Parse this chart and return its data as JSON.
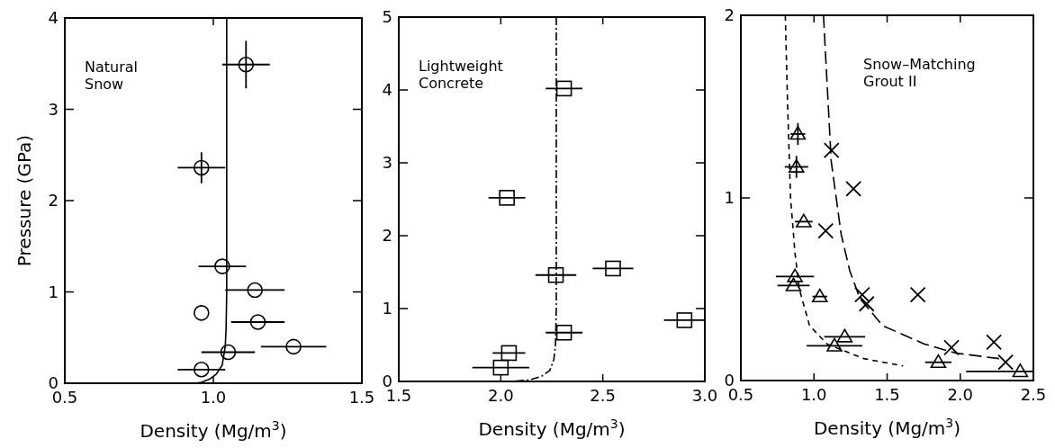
{
  "chart_data": [
    {
      "type": "scatter",
      "xlabel": "Density (Mg/m$^{3}$)",
      "ylabel": "Pressure (GPa)",
      "xlim": [
        0.5,
        1.5
      ],
      "xticks": [
        0.5,
        {
          "value": 1,
          "label": "1.0"
        },
        1.5
      ],
      "ylim": [
        0,
        4
      ],
      "yticks": [
        0,
        1,
        2,
        3,
        4
      ],
      "annotations": [
        "Natural\nSnow"
      ],
      "series": [
        {
          "marker": "circle",
          "color": "#000000",
          "x": [
            1.11,
            0.96,
            1.03,
            1.14,
            0.96,
            1.15,
            1.27,
            1.05,
            0.96
          ],
          "values": [
            3.49,
            2.36,
            1.28,
            1.02,
            0.77,
            0.67,
            0.4,
            0.34,
            0.15
          ],
          "xerrors": [
            0.08,
            0.08,
            0.08,
            0.1,
            null,
            0.09,
            0.11,
            0.09,
            0.08
          ],
          "errors": [
            0.26,
            0.17,
            null,
            null,
            null,
            null,
            null,
            null,
            null
          ]
        },
        {
          "type": "line",
          "line_style": "solid",
          "color": "#000000",
          "x": [
            1.045,
            1.045,
            1.043,
            1.04,
            1.03,
            1.01,
            0.99,
            0.96,
            0.94
          ],
          "values": [
            4,
            1,
            0.6,
            0.4,
            0.2,
            0.1,
            0.05,
            0.01,
            0
          ]
        }
      ]
    },
    {
      "type": "scatter",
      "xlabel": "Density (Mg/m$^{3}$)",
      "xlim": [
        1.5,
        3.0
      ],
      "xticks": [
        1.5,
        {
          "value": 2,
          "label": "2.0"
        },
        2.5,
        {
          "value": 3,
          "label": "3.0"
        }
      ],
      "ylim": [
        0,
        5
      ],
      "yticks": [
        0,
        1,
        2,
        3,
        4,
        5
      ],
      "annotations": [
        "Lightweight\nConcrete"
      ],
      "series": [
        {
          "marker": "square",
          "color": "#000000",
          "x": [
            2.31,
            2.03,
            2.27,
            2.55,
            2.9,
            2.31,
            2.04,
            2.0
          ],
          "values": [
            4.02,
            2.52,
            1.46,
            1.55,
            0.84,
            0.67,
            0.39,
            0.19
          ],
          "xerrors": [
            0.09,
            0.09,
            0.1,
            0.1,
            0.1,
            0.09,
            0.08,
            0.14
          ]
        },
        {
          "type": "line",
          "line_style": "dashdot",
          "color": "#000000",
          "x": [
            2.272,
            2.272,
            2.268,
            2.26,
            2.24,
            2.2,
            2.14,
            2.05
          ],
          "values": [
            5,
            1,
            0.5,
            0.3,
            0.15,
            0.07,
            0.02,
            0
          ]
        }
      ]
    },
    {
      "type": "scatter",
      "xlabel": "Density (Mg/m$^{3}$)",
      "xlim": [
        0.5,
        2.5
      ],
      "xticks": [
        0.5,
        {
          "value": 1,
          "label": "1.0"
        },
        1.5,
        {
          "value": 2,
          "label": "2.0"
        },
        2.5
      ],
      "ylim": [
        0,
        2
      ],
      "yticks": [
        0,
        1,
        2
      ],
      "annotations": [
        "Snow–Matching\nGrout II"
      ],
      "series": [
        {
          "marker": "triangle",
          "color": "#000000",
          "x": [
            0.89,
            0.88,
            0.93,
            0.87,
            0.86,
            1.04,
            1.21,
            1.14,
            1.85,
            2.41
          ],
          "values": [
            1.35,
            1.17,
            0.87,
            0.57,
            0.52,
            0.46,
            0.24,
            0.19,
            0.1,
            0.05
          ],
          "xerrors": [
            0.05,
            0.08,
            0.06,
            0.13,
            0.11,
            0.05,
            0.14,
            0.19,
            0.09,
            [
              2.04,
              2.5
            ]
          ],
          "errors": [
            0.06,
            0.06,
            null,
            null,
            null,
            null,
            null,
            null,
            null,
            null
          ]
        },
        {
          "marker": "cross",
          "color": "#000000",
          "x": [
            1.12,
            1.27,
            1.08,
            1.33,
            1.36,
            1.71,
            1.94,
            2.23,
            2.31
          ],
          "values": [
            1.26,
            1.05,
            0.82,
            0.47,
            0.42,
            0.47,
            0.18,
            0.21,
            0.1
          ]
        },
        {
          "type": "line",
          "line_style": "dashed",
          "color": "#000000",
          "x": [
            0.804,
            0.82,
            0.84,
            0.87,
            0.9,
            0.97,
            1.09,
            1.34,
            1.61
          ],
          "values": [
            2,
            1.5,
            1,
            0.7,
            0.5,
            0.3,
            0.2,
            0.12,
            0.08
          ]
        },
        {
          "type": "line",
          "line_style": "longdash",
          "color": "#000000",
          "x": [
            1.065,
            1.118,
            1.186,
            1.245,
            1.314,
            1.47,
            1.755,
            1.97,
            2.265
          ],
          "values": [
            2,
            1.2,
            0.8,
            0.6,
            0.45,
            0.3,
            0.2,
            0.15,
            0.12
          ]
        }
      ]
    }
  ]
}
